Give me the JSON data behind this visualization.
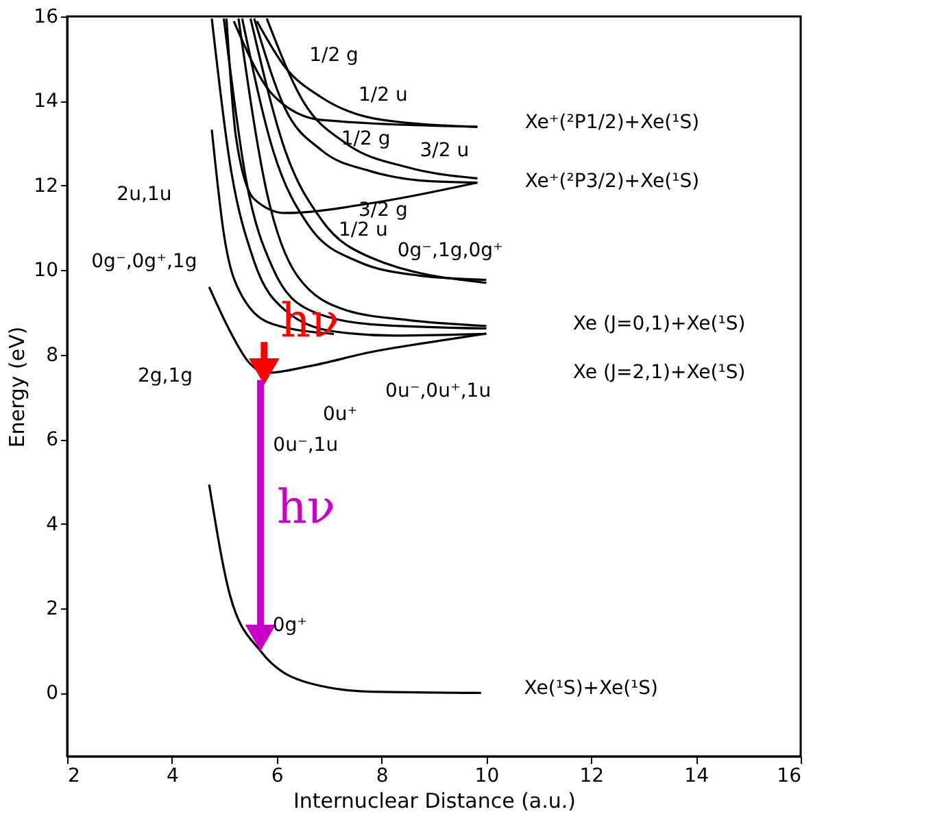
{
  "chart_data": {
    "type": "line",
    "xlabel": "Internuclear Distance  (a.u.)",
    "ylabel": "Energy  (eV)",
    "xlim": [
      2,
      16
    ],
    "xticks": [
      2,
      4,
      6,
      8,
      10,
      12,
      14,
      16
    ],
    "ylim": [
      -1.5,
      16
    ],
    "yticks": [
      0,
      2,
      4,
      6,
      8,
      10,
      12,
      14,
      16
    ],
    "grid": false,
    "marker": "none",
    "line_style": "solid",
    "series": [
      {
        "color": "#000000",
        "x": [
          4.71,
          5.11,
          5.69,
          6.63,
          7.79,
          9.9
        ],
        "values": [
          4.93,
          2.3,
          0.99,
          0.23,
          0.03,
          0
        ]
      },
      {
        "color": "#000000",
        "x": [
          4.71,
          5.11,
          5.46,
          5.81,
          6.63,
          7.79,
          9.43,
          10
        ],
        "values": [
          9.6,
          8.55,
          7.83,
          7.57,
          7.73,
          8.06,
          8.39,
          8.5
        ]
      },
      {
        "color": "#000000",
        "x": [
          4.76,
          4.99,
          5.34,
          5.93,
          7.09
        ],
        "values": [
          13.32,
          10.86,
          9.38,
          8.72,
          8.49
        ]
      },
      {
        "color": "#000000",
        "x": [
          4.76,
          5.11,
          5.57,
          6.16,
          7.09,
          8.26,
          10
        ],
        "values": [
          15.95,
          12.5,
          10.2,
          9.05,
          8.55,
          8.45,
          8.49
        ]
      },
      {
        "color": "#000000",
        "x": [
          4.99,
          5.41,
          5.93,
          6.63,
          7.79,
          10
        ],
        "values": [
          15.95,
          12.17,
          10.03,
          9.05,
          8.72,
          8.62
        ]
      },
      {
        "color": "#000000",
        "x": [
          5.27,
          5.81,
          6.39,
          7.33,
          8.5,
          10
        ],
        "values": [
          15.95,
          11.84,
          9.87,
          9.05,
          8.82,
          8.68
        ]
      },
      {
        "color": "#000000",
        "x": [
          5.34,
          5.93,
          6.63,
          7.56,
          8.73,
          10
        ],
        "values": [
          15.95,
          12.83,
          11.02,
          10.2,
          9.87,
          9.77
        ]
      },
      {
        "color": "#000000",
        "x": [
          5.5,
          6.16,
          6.86,
          7.79,
          10
        ],
        "values": [
          15.95,
          12.83,
          11.18,
          10.3,
          9.7
        ]
      },
      {
        "color": "#000000",
        "x": [
          5.04,
          5.22,
          5.57,
          6.16,
          7.79,
          9.83
        ],
        "values": [
          15.95,
          13.16,
          11.68,
          11.35,
          11.58,
          12.07
        ]
      },
      {
        "color": "#000000",
        "x": [
          5.57,
          6.16,
          6.86,
          7.79,
          8.96,
          9.83
        ],
        "values": [
          15.95,
          13.82,
          12.83,
          12.34,
          12.1,
          12.07
        ]
      },
      {
        "color": "#000000",
        "x": [
          5.81,
          6.51,
          7.33,
          8.5,
          9.83
        ],
        "values": [
          15.95,
          13.98,
          12.99,
          12.43,
          12.17
        ]
      },
      {
        "color": "#000000",
        "x": [
          5.62,
          6.16,
          6.86,
          8.03,
          9.83
        ],
        "values": [
          15.89,
          14.8,
          14.08,
          13.55,
          13.39
        ]
      },
      {
        "color": "#000000",
        "x": [
          5.18,
          5.93,
          6.86,
          9.83
        ],
        "values": [
          15.89,
          14.14,
          13.55,
          13.39
        ]
      },
      {
        "name": "hν",
        "color": "#ff0000",
        "marker": "triangle",
        "x": [
          5.76,
          5.76
        ],
        "values": [
          8.3,
          7.6
        ]
      },
      {
        "name": "hν",
        "color": "#c800c8",
        "marker": "triangle",
        "x": [
          5.69,
          5.69
        ],
        "values": [
          7.4,
          1.3
        ]
      }
    ],
    "annotations": [
      "1/2 g",
      "1/2 u",
      "1/2 g",
      "3/2 u",
      "3/2 g",
      "1/2 u",
      "2u,1u",
      "0g⁻,0g⁺,1g",
      "0g⁻,1g,0g⁺",
      "2g,1g",
      "0u⁻,0u⁺,1u",
      "0u⁺",
      "0u⁻,1u",
      "0g⁺",
      "Xe⁺(²P1/2)+Xe(¹S)",
      "Xe⁺(²P3/2)+Xe(¹S)",
      "Xe  (J=0,1)+Xe(¹S)",
      "Xe  (J=2,1)+Xe(¹S)",
      "Xe(¹S)+Xe(¹S)"
    ]
  }
}
